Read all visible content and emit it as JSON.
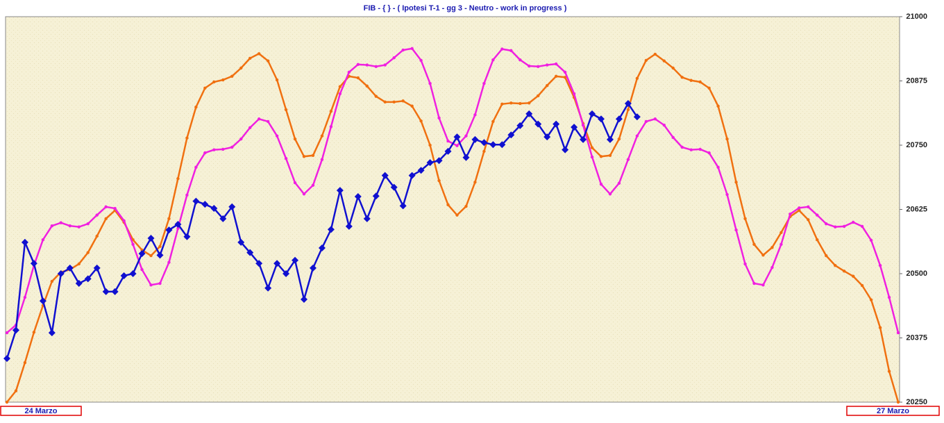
{
  "chart_data": {
    "type": "line",
    "title": "FIB  -  { } - ( Ipotesi T-1 - gg 3 - Neutro - work in progress )",
    "categories": [
      "24 Marzo",
      null,
      null,
      null,
      null,
      null,
      null,
      null,
      null,
      null,
      null,
      null,
      null,
      null,
      null,
      null,
      null,
      null,
      null,
      null,
      null,
      null,
      null,
      null,
      null,
      null,
      null,
      null,
      null,
      null,
      null,
      null,
      null,
      null,
      null,
      null,
      null,
      null,
      null,
      null,
      null,
      null,
      null,
      null,
      null,
      null,
      null,
      null,
      null,
      null,
      null,
      null,
      null,
      null,
      null,
      null,
      null,
      null,
      null,
      null,
      null,
      null,
      null,
      null,
      null,
      null,
      null,
      null,
      null,
      null,
      null,
      null,
      null,
      null,
      null,
      null,
      null,
      null,
      null,
      null,
      null,
      null,
      null,
      null,
      null,
      null,
      null,
      null,
      null,
      null,
      null,
      null,
      null,
      null,
      null,
      null,
      null,
      null,
      null,
      "27 Marzo"
    ],
    "series": [
      {
        "color": "#f07010",
        "marker": "dot",
        "values": [
          20250,
          20272,
          20327,
          20386,
          20438,
          20485,
          20503,
          20508,
          20519,
          20541,
          20573,
          20607,
          20623,
          20600,
          20566,
          20546,
          20535,
          20553,
          20607,
          20685,
          20764,
          20824,
          20861,
          20873,
          20877,
          20884,
          20900,
          20919,
          20928,
          20914,
          20877,
          20819,
          20762,
          20728,
          20730,
          20768,
          20816,
          20864,
          20884,
          20881,
          20865,
          20845,
          20834,
          20834,
          20836,
          20826,
          20797,
          20750,
          20681,
          20634,
          20614,
          20631,
          20678,
          20738,
          20796,
          20830,
          20832,
          20831,
          20832,
          20846,
          20866,
          20884,
          20882,
          20843,
          20792,
          20745,
          20728,
          20730,
          20762,
          20819,
          20880,
          20915,
          20927,
          20914,
          20900,
          20882,
          20876,
          20873,
          20861,
          20826,
          20762,
          20678,
          20607,
          20557,
          20536,
          20551,
          20580,
          20611,
          20623,
          20605,
          20566,
          20535,
          20516,
          20505,
          20495,
          20477,
          20449,
          20395,
          20310,
          20250
        ]
      },
      {
        "color": "#f020e0",
        "marker": "dot",
        "values": [
          20385,
          20400,
          20454,
          20516,
          20566,
          20593,
          20599,
          20593,
          20591,
          20597,
          20614,
          20630,
          20627,
          20603,
          20557,
          20508,
          20478,
          20481,
          20522,
          20588,
          20653,
          20707,
          20735,
          20741,
          20742,
          20746,
          20762,
          20784,
          20801,
          20796,
          20768,
          20724,
          20677,
          20655,
          20672,
          20722,
          20786,
          20850,
          20892,
          20907,
          20906,
          20903,
          20906,
          20920,
          20935,
          20938,
          20915,
          20870,
          20803,
          20758,
          20749,
          20768,
          20809,
          20870,
          20916,
          20937,
          20934,
          20916,
          20904,
          20903,
          20906,
          20908,
          20892,
          20850,
          20789,
          20727,
          20674,
          20655,
          20676,
          20722,
          20768,
          20796,
          20801,
          20789,
          20765,
          20746,
          20741,
          20742,
          20735,
          20707,
          20654,
          20585,
          20519,
          20481,
          20478,
          20512,
          20557,
          20616,
          20628,
          20630,
          20614,
          20597,
          20591,
          20592,
          20600,
          20592,
          20565,
          20516,
          20454,
          20385
        ]
      },
      {
        "color": "#1010d0",
        "marker": "diamond",
        "values": [
          20335,
          20390,
          20561,
          20520,
          20447,
          20385,
          20500,
          20511,
          20481,
          20490,
          20511,
          20465,
          20465,
          20496,
          20500,
          20539,
          20569,
          20536,
          20585,
          20596,
          20572,
          20641,
          20635,
          20627,
          20607,
          20630,
          20561,
          20541,
          20520,
          20472,
          20520,
          20500,
          20526,
          20450,
          20511,
          20550,
          20586,
          20662,
          20592,
          20650,
          20607,
          20651,
          20691,
          20668,
          20632,
          20691,
          20701,
          20716,
          20720,
          20738,
          20766,
          20726,
          20761,
          20755,
          20751,
          20751,
          20770,
          20788,
          20811,
          20791,
          20766,
          20791,
          20741,
          20785,
          20761,
          20811,
          20801,
          20761,
          20801,
          20831,
          20805,
          null,
          null,
          null,
          null,
          null,
          null,
          null,
          null,
          null,
          null,
          null,
          null,
          null,
          null,
          null,
          null,
          null,
          null,
          null,
          null,
          null,
          null,
          null,
          null,
          null,
          null,
          null,
          null,
          null
        ]
      }
    ],
    "ylim": [
      20250,
      21000
    ],
    "yticks": [
      20250,
      20375,
      20500,
      20625,
      20750,
      20875,
      21000
    ],
    "grid": false
  }
}
